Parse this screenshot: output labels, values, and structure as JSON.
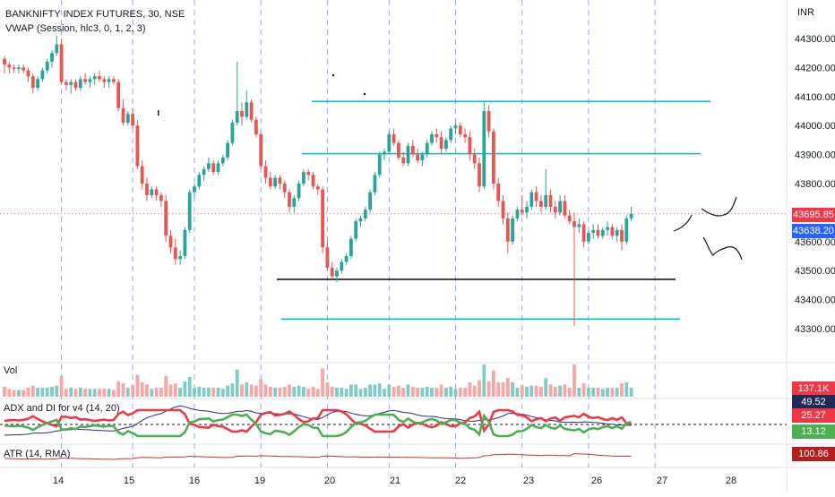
{
  "header": {
    "symbol_line": "BANKNIFTY INDEX FUTURES, 30, NSE",
    "vwap_line": "VWAP (Session, hlc3, 0, 1, 2, 3)"
  },
  "currency": "INR",
  "price_axis": {
    "ticks": [
      "44300.00",
      "44200.00",
      "44100.00",
      "44000.00",
      "43900.00",
      "43800.00",
      "43600.00",
      "43500.00",
      "43400.00",
      "43300.00"
    ]
  },
  "time_axis": {
    "ticks": [
      "14",
      "15",
      "16",
      "19",
      "20",
      "21",
      "22",
      "23",
      "26",
      "27",
      "28"
    ]
  },
  "price_badges": {
    "last_price": "43695.85",
    "vwap": "43638.20"
  },
  "panes": {
    "volume": {
      "title": "Vol",
      "value": "137.1K"
    },
    "adx": {
      "title": "ADX and DI for v4 (14, 20)",
      "adx_value": "49.52",
      "di_minus_value": "25.27",
      "di_plus_value": "13.12"
    },
    "atr": {
      "title": "ATR (14, RMA)",
      "value": "100.86"
    }
  },
  "colors": {
    "up": "#26a69a",
    "down": "#ef5350",
    "level_cyan": "#00bcd4",
    "level_black": "#131722",
    "adx": "#2a2e6e",
    "di_minus": "#f23645",
    "di_plus": "#4caf50",
    "last_price_badge": "#f23645",
    "vwap_badge": "#2962ff",
    "volume_badge": "#f23645",
    "adx_badge": "#1e2a5a",
    "di_minus_badge": "#f23645",
    "di_plus_badge": "#4caf50",
    "atr_badge": "#b71c1c"
  },
  "chart_data": {
    "type": "candlestick",
    "levels": [
      44083,
      43903,
      43470,
      43333
    ],
    "last_price": 43695.85,
    "vwap": 43638.2,
    "session_marks": [
      {
        "label": "14",
        "index": 12
      },
      {
        "label": "15",
        "index": 27
      },
      {
        "label": "16",
        "index": 40
      },
      {
        "label": "19",
        "index": 54
      },
      {
        "label": "20",
        "index": 68
      },
      {
        "label": "21",
        "index": 81
      },
      {
        "label": "22",
        "index": 95
      },
      {
        "label": "23",
        "index": 109
      },
      {
        "label": "26",
        "index": 123
      },
      {
        "label": "27",
        "index": 137
      }
    ],
    "candles_approx": [
      [
        44230,
        44240,
        44180,
        44210
      ],
      [
        44210,
        44220,
        44180,
        44200
      ],
      [
        44200,
        44210,
        44180,
        44195
      ],
      [
        44195,
        44210,
        44180,
        44200
      ],
      [
        44200,
        44210,
        44180,
        44190
      ],
      [
        44190,
        44200,
        44150,
        44170
      ],
      [
        44170,
        44180,
        44110,
        44130
      ],
      [
        44130,
        44170,
        44120,
        44160
      ],
      [
        44160,
        44200,
        44150,
        44190
      ],
      [
        44190,
        44230,
        44180,
        44220
      ],
      [
        44220,
        44260,
        44200,
        44250
      ],
      [
        44250,
        44310,
        44240,
        44280
      ],
      [
        44280,
        44300,
        44140,
        44150
      ],
      [
        44150,
        44160,
        44120,
        44140
      ],
      [
        44140,
        44160,
        44110,
        44150
      ],
      [
        44150,
        44160,
        44120,
        44130
      ],
      [
        44130,
        44170,
        44120,
        44160
      ],
      [
        44160,
        44180,
        44140,
        44150
      ],
      [
        44150,
        44170,
        44130,
        44160
      ],
      [
        44160,
        44180,
        44140,
        44170
      ],
      [
        44170,
        44190,
        44150,
        44160
      ],
      [
        44160,
        44170,
        44130,
        44150
      ],
      [
        44150,
        44170,
        44130,
        44160
      ],
      [
        44160,
        44170,
        44140,
        44150
      ],
      [
        44150,
        44160,
        44050,
        44060
      ],
      [
        44060,
        44090,
        44000,
        44010
      ],
      [
        44010,
        44050,
        44000,
        44040
      ],
      [
        44040,
        44060,
        43990,
        44000
      ],
      [
        44000,
        44020,
        43850,
        43860
      ],
      [
        43860,
        43880,
        43780,
        43800
      ],
      [
        43800,
        43820,
        43740,
        43760
      ],
      [
        43760,
        43790,
        43750,
        43780
      ],
      [
        43780,
        43790,
        43740,
        43760
      ],
      [
        43760,
        43770,
        43720,
        43740
      ],
      [
        43740,
        43760,
        43600,
        43620
      ],
      [
        43620,
        43640,
        43560,
        43580
      ],
      [
        43580,
        43610,
        43520,
        43540
      ],
      [
        43540,
        43570,
        43520,
        43550
      ],
      [
        43550,
        43650,
        43540,
        43640
      ],
      [
        43640,
        43780,
        43630,
        43770
      ],
      [
        43770,
        43800,
        43750,
        43790
      ],
      [
        43790,
        43840,
        43780,
        43830
      ],
      [
        43830,
        43860,
        43810,
        43850
      ],
      [
        43850,
        43890,
        43840,
        43870
      ],
      [
        43870,
        43880,
        43830,
        43840
      ],
      [
        43840,
        43880,
        43830,
        43870
      ],
      [
        43870,
        43900,
        43860,
        43890
      ],
      [
        43890,
        43950,
        43880,
        43940
      ],
      [
        43940,
        44020,
        43930,
        44010
      ],
      [
        44010,
        44220,
        44000,
        44050
      ],
      [
        44050,
        44080,
        44000,
        44030
      ],
      [
        44030,
        44120,
        44020,
        44080
      ],
      [
        44080,
        44090,
        44010,
        44020
      ],
      [
        44020,
        44030,
        43960,
        43970
      ],
      [
        43970,
        43980,
        43850,
        43860
      ],
      [
        43860,
        43880,
        43800,
        43820
      ],
      [
        43820,
        43840,
        43780,
        43790
      ],
      [
        43790,
        43830,
        43780,
        43820
      ],
      [
        43820,
        43830,
        43780,
        43800
      ],
      [
        43800,
        43810,
        43750,
        43770
      ],
      [
        43770,
        43780,
        43700,
        43720
      ],
      [
        43720,
        43760,
        43700,
        43750
      ],
      [
        43750,
        43810,
        43740,
        43800
      ],
      [
        43800,
        43850,
        43790,
        43840
      ],
      [
        43840,
        43850,
        43810,
        43830
      ],
      [
        43830,
        43840,
        43780,
        43790
      ],
      [
        43790,
        43800,
        43760,
        43780
      ],
      [
        43780,
        43790,
        43560,
        43580
      ],
      [
        43580,
        43600,
        43500,
        43510
      ],
      [
        43510,
        43530,
        43470,
        43480
      ],
      [
        43480,
        43510,
        43460,
        43500
      ],
      [
        43500,
        43540,
        43490,
        43530
      ],
      [
        43530,
        43560,
        43520,
        43550
      ],
      [
        43550,
        43620,
        43540,
        43610
      ],
      [
        43610,
        43680,
        43600,
        43670
      ],
      [
        43670,
        43690,
        43650,
        43680
      ],
      [
        43680,
        43720,
        43670,
        43710
      ],
      [
        43710,
        43780,
        43700,
        43770
      ],
      [
        43770,
        43840,
        43760,
        43830
      ],
      [
        43830,
        43910,
        43820,
        43900
      ],
      [
        43900,
        43920,
        43880,
        43910
      ],
      [
        43910,
        43980,
        43900,
        43970
      ],
      [
        43970,
        43990,
        43930,
        43940
      ],
      [
        43940,
        43950,
        43880,
        43890
      ],
      [
        43890,
        43910,
        43860,
        43870
      ],
      [
        43870,
        43940,
        43860,
        43930
      ],
      [
        43930,
        43950,
        43890,
        43900
      ],
      [
        43900,
        43920,
        43870,
        43880
      ],
      [
        43880,
        43910,
        43860,
        43900
      ],
      [
        43900,
        43950,
        43890,
        43940
      ],
      [
        43940,
        43980,
        43930,
        43970
      ],
      [
        43970,
        43990,
        43940,
        43960
      ],
      [
        43960,
        43980,
        43900,
        43920
      ],
      [
        43920,
        43960,
        43910,
        43950
      ],
      [
        43950,
        44000,
        43940,
        43990
      ],
      [
        43990,
        44010,
        43970,
        44000
      ],
      [
        44000,
        44010,
        43960,
        43970
      ],
      [
        43970,
        43990,
        43940,
        43960
      ],
      [
        43960,
        43980,
        43880,
        43900
      ],
      [
        43900,
        43920,
        43850,
        43870
      ],
      [
        43870,
        43890,
        43770,
        43790
      ],
      [
        43790,
        44080,
        43780,
        44050
      ],
      [
        44050,
        44070,
        43960,
        43980
      ],
      [
        43980,
        43990,
        43780,
        43800
      ],
      [
        43800,
        43820,
        43720,
        43740
      ],
      [
        43740,
        43760,
        43660,
        43680
      ],
      [
        43680,
        43700,
        43560,
        43600
      ],
      [
        43600,
        43690,
        43590,
        43680
      ],
      [
        43680,
        43720,
        43670,
        43710
      ],
      [
        43710,
        43760,
        43690,
        43700
      ],
      [
        43700,
        43740,
        43680,
        43720
      ],
      [
        43720,
        43780,
        43710,
        43770
      ],
      [
        43770,
        43790,
        43720,
        43740
      ],
      [
        43740,
        43760,
        43700,
        43720
      ],
      [
        43720,
        43850,
        43710,
        43760
      ],
      [
        43760,
        43780,
        43700,
        43720
      ],
      [
        43720,
        43740,
        43680,
        43700
      ],
      [
        43700,
        43760,
        43690,
        43740
      ],
      [
        43740,
        43760,
        43680,
        43690
      ],
      [
        43690,
        43710,
        43660,
        43670
      ],
      [
        43670,
        43700,
        43310,
        43650
      ],
      [
        43650,
        43680,
        43630,
        43660
      ],
      [
        43660,
        43670,
        43580,
        43600
      ],
      [
        43600,
        43640,
        43590,
        43630
      ],
      [
        43630,
        43660,
        43610,
        43640
      ],
      [
        43640,
        43660,
        43610,
        43620
      ],
      [
        43620,
        43650,
        43610,
        43640
      ],
      [
        43640,
        43670,
        43620,
        43650
      ],
      [
        43650,
        43660,
        43610,
        43620
      ],
      [
        43620,
        43650,
        43600,
        43640
      ],
      [
        43640,
        43660,
        43570,
        43600
      ],
      [
        43600,
        43690,
        43590,
        43680
      ],
      [
        43680,
        43720,
        43670,
        43696
      ]
    ]
  }
}
